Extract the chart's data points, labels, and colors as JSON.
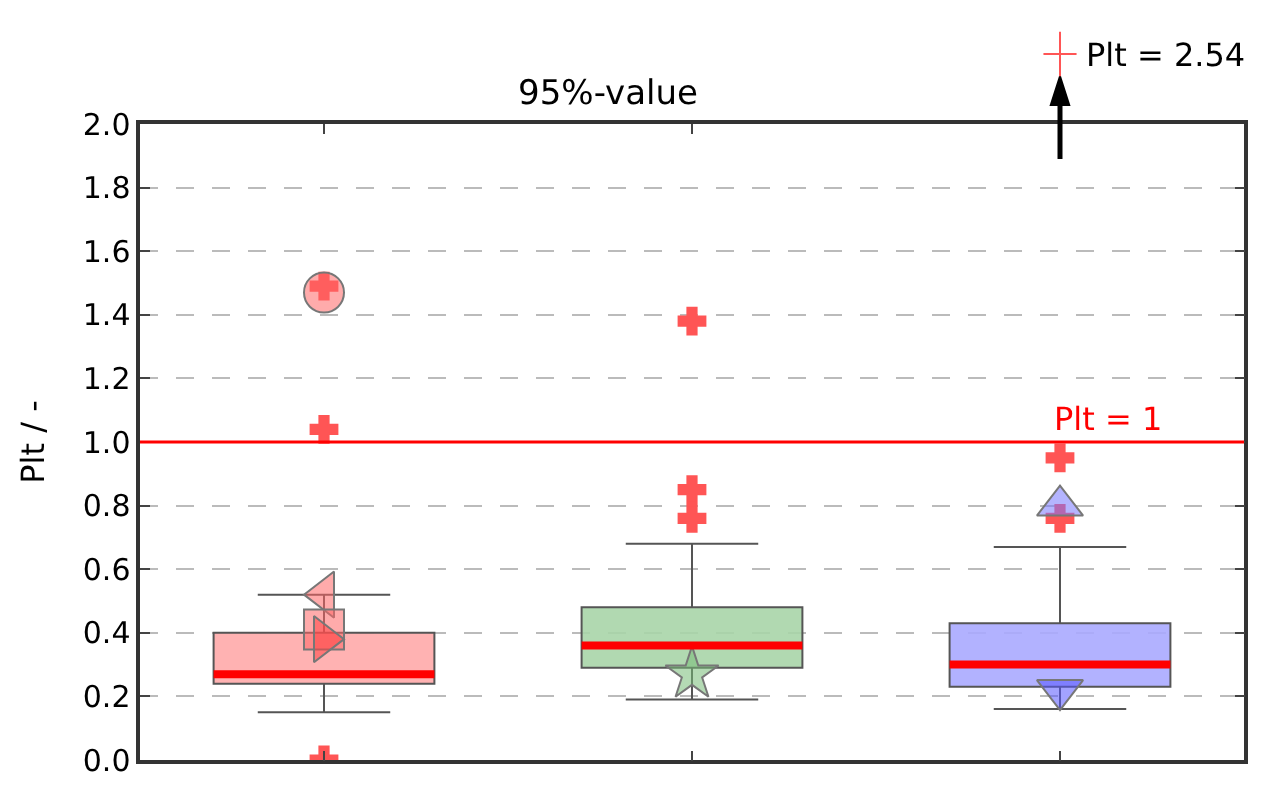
{
  "chart_data": {
    "type": "box",
    "title": "95%-value",
    "ylabel": "Plt / -",
    "categories": [
      null,
      null,
      null
    ],
    "ylim": [
      0,
      2.0
    ],
    "yticks": [
      {
        "value": 0,
        "label": "0.0"
      },
      0.2,
      0.4,
      0.6,
      0.8,
      {
        "value": 1,
        "label": "1.0"
      },
      1.2,
      1.4,
      1.6,
      1.8,
      {
        "value": 2,
        "label": "2.0"
      }
    ],
    "grid": "y",
    "tick_labels": "y",
    "colors": [
      "#ffaaaa",
      "#a8d5a8",
      "#aaaaff"
    ],
    "boxes": [
      {
        "low": 0.15,
        "q1": 0.24,
        "median": 0.27,
        "q3": 0.4,
        "high": 0.52
      },
      {
        "low": 0.19,
        "q1": 0.29,
        "median": 0.36,
        "q3": 0.48,
        "high": 0.68
      },
      {
        "low": 0.16,
        "q1": 0.23,
        "median": 0.3,
        "q3": 0.43,
        "high": 0.67
      }
    ],
    "series": [
      {
        "type": "scatter",
        "marker": "cross",
        "color": "#ff5555",
        "values": [
          0.0,
          0.76,
          0.76
        ]
      },
      {
        "type": "scatter",
        "marker": "cross",
        "color": "#ff5555",
        "values": [
          1.04,
          0.85,
          0.95
        ]
      },
      {
        "type": "scatter",
        "marker": "cross",
        "color": "#ff5555",
        "values": [
          1.49,
          1.38,
          null
        ]
      },
      {
        "type": "scatter",
        "marker": "circle",
        "color": "#ff6666",
        "values": [
          1.47,
          null,
          null
        ]
      },
      {
        "type": "scatter",
        "marker": "triangle-left",
        "color": "#ff6666",
        "values": [
          0.52,
          null,
          null
        ]
      },
      {
        "type": "scatter",
        "marker": "square",
        "color": "#ff6666",
        "values": [
          0.41,
          null,
          null
        ]
      },
      {
        "type": "scatter",
        "marker": "triangle-right",
        "color": "#ff4444",
        "values": [
          0.38,
          null,
          null
        ]
      },
      {
        "type": "scatter",
        "marker": "star",
        "color": "#77bb77",
        "values": [
          null,
          0.27,
          null
        ]
      },
      {
        "type": "scatter",
        "marker": "triangle-up",
        "color": "#7777ff",
        "values": [
          null,
          null,
          0.8
        ]
      },
      {
        "type": "scatter",
        "marker": "triangle-down",
        "color": "#5555ff",
        "values": [
          null,
          null,
          0.22
        ]
      }
    ],
    "ref_lines": [
      {
        "axis": "y",
        "value": 1,
        "label": "Plt = 1",
        "color": "#ff0000"
      }
    ],
    "annotations": [
      "Plt = 2.54"
    ]
  }
}
